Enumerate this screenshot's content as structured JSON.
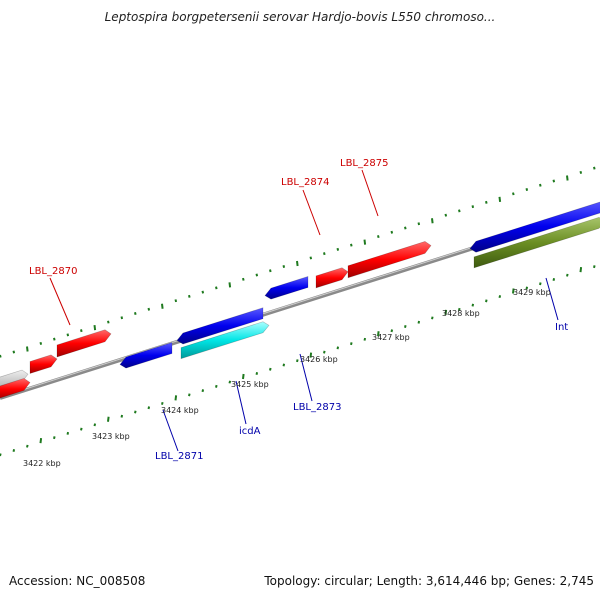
{
  "title": "Leptospira borgpetersenii serovar Hardjo-bovis L550 chromoso...",
  "footer": {
    "accession": "Accession: NC_008508",
    "summary": "Topology: circular; Length: 3,614,446 bp; Genes: 2,745"
  },
  "colors": {
    "backbone": "#8a8a8a",
    "tick": "#1f7a1f",
    "forward_label": "#cc0000",
    "reverse_label": "#0000aa",
    "gene_red": "#ff0000",
    "gene_blue": "#0000ee",
    "gene_cyan": "#00e5e5",
    "gene_olive": "#6b8e23",
    "gene_grey": "#cccccc"
  },
  "scale": {
    "kbp_labels": [
      "3422 kbp",
      "3423 kbp",
      "3424 kbp",
      "3425 kbp",
      "3426 kbp",
      "3427 kbp",
      "3428 kbp",
      "3429 kbp"
    ]
  },
  "genes": {
    "forward": [
      {
        "name": "LBL_2870",
        "strand": "+",
        "color": "gene_red"
      },
      {
        "name": "LBL_2874",
        "strand": "+",
        "color": "gene_red"
      },
      {
        "name": "LBL_2875",
        "strand": "+",
        "color": "gene_red"
      }
    ],
    "reverse": [
      {
        "name": "LBL_2871",
        "strand": "-",
        "color": "gene_blue"
      },
      {
        "name": "icdA",
        "strand": "-",
        "color": "gene_cyan"
      },
      {
        "name": "LBL_2873",
        "strand": "-",
        "color": "gene_blue"
      },
      {
        "name": "Int",
        "strand": "-",
        "color": "gene_olive"
      }
    ]
  }
}
